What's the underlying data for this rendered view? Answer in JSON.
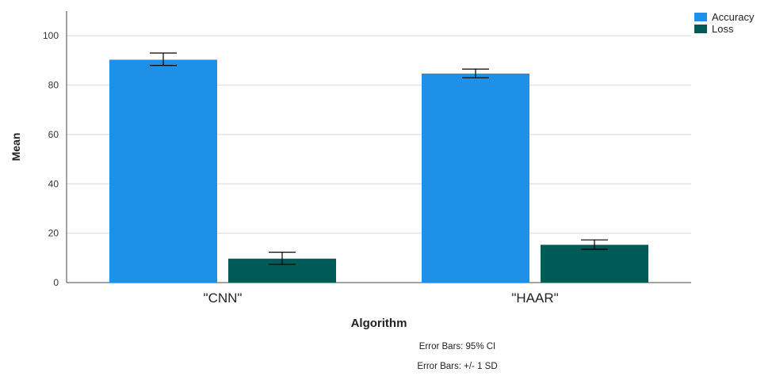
{
  "chart_data": {
    "type": "bar",
    "categories": [
      "\"CNN\"",
      "\"HAAR\""
    ],
    "series": [
      {
        "name": "Accuracy",
        "values": [
          90.3,
          84.7
        ],
        "error_low": [
          88.0,
          83.0
        ],
        "error_high": [
          93.0,
          86.5
        ],
        "color": "#1e90e8"
      },
      {
        "name": "Loss",
        "values": [
          9.7,
          15.3
        ],
        "error_low": [
          7.4,
          13.5
        ],
        "error_high": [
          12.3,
          17.3
        ],
        "color": "#005a55"
      }
    ],
    "xlabel": "Algorithm",
    "ylabel": "Mean",
    "ylim": [
      0,
      110
    ],
    "yticks": [
      0,
      20,
      40,
      60,
      80,
      100
    ],
    "grid": true,
    "legend": "top-right",
    "footnotes": [
      "Error Bars: 95% CI",
      "Error Bars: +/- 1 SD"
    ]
  }
}
